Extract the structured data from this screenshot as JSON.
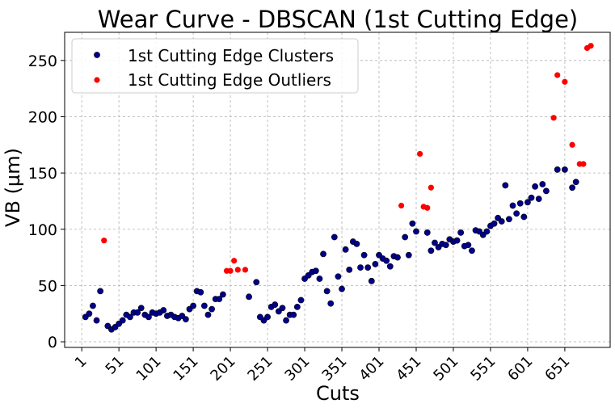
{
  "chart_data": {
    "type": "scatter",
    "title": "Wear Curve - DBSCAN (1st Cutting Edge)",
    "xlabel": "Cuts",
    "ylabel": "VB (µm)",
    "xlim": [
      -22,
      712
    ],
    "ylim": [
      -5,
      275
    ],
    "x_ticks": [
      1,
      51,
      101,
      151,
      201,
      251,
      301,
      351,
      401,
      451,
      501,
      551,
      601,
      651
    ],
    "x_tick_labels": [
      "1",
      "51",
      "101",
      "151",
      "201",
      "251",
      "301",
      "351",
      "401",
      "451",
      "501",
      "551",
      "601",
      "651"
    ],
    "y_ticks": [
      0,
      50,
      100,
      150,
      200,
      250
    ],
    "y_tick_labels": [
      "0",
      "50",
      "100",
      "150",
      "200",
      "250"
    ],
    "grid": true,
    "legend_position": "top-left",
    "series": [
      {
        "name": "1st Cutting Edge Clusters",
        "color": "#00008b",
        "edge_color": "#000000",
        "marker": "circle",
        "points": [
          [
            6,
            22
          ],
          [
            11,
            25
          ],
          [
            16,
            32
          ],
          [
            21,
            19
          ],
          [
            26,
            45
          ],
          [
            36,
            14
          ],
          [
            41,
            11
          ],
          [
            46,
            13
          ],
          [
            51,
            16
          ],
          [
            56,
            19
          ],
          [
            61,
            24
          ],
          [
            66,
            22
          ],
          [
            71,
            26
          ],
          [
            76,
            26
          ],
          [
            81,
            30
          ],
          [
            86,
            24
          ],
          [
            91,
            22
          ],
          [
            96,
            26
          ],
          [
            101,
            25
          ],
          [
            106,
            26
          ],
          [
            111,
            28
          ],
          [
            116,
            23
          ],
          [
            121,
            24
          ],
          [
            126,
            22
          ],
          [
            131,
            21
          ],
          [
            136,
            23
          ],
          [
            141,
            20
          ],
          [
            146,
            29
          ],
          [
            151,
            32
          ],
          [
            156,
            45
          ],
          [
            161,
            44
          ],
          [
            166,
            32
          ],
          [
            171,
            24
          ],
          [
            176,
            29
          ],
          [
            181,
            38
          ],
          [
            186,
            38
          ],
          [
            191,
            42
          ],
          [
            226,
            40
          ],
          [
            236,
            53
          ],
          [
            241,
            22
          ],
          [
            246,
            19
          ],
          [
            251,
            22
          ],
          [
            256,
            31
          ],
          [
            261,
            33
          ],
          [
            266,
            27
          ],
          [
            271,
            30
          ],
          [
            276,
            19
          ],
          [
            281,
            24
          ],
          [
            286,
            24
          ],
          [
            291,
            31
          ],
          [
            296,
            37
          ],
          [
            301,
            56
          ],
          [
            306,
            59
          ],
          [
            311,
            62
          ],
          [
            316,
            63
          ],
          [
            321,
            56
          ],
          [
            326,
            78
          ],
          [
            331,
            45
          ],
          [
            336,
            34
          ],
          [
            341,
            93
          ],
          [
            346,
            58
          ],
          [
            351,
            47
          ],
          [
            356,
            82
          ],
          [
            361,
            64
          ],
          [
            366,
            89
          ],
          [
            371,
            87
          ],
          [
            376,
            66
          ],
          [
            381,
            77
          ],
          [
            386,
            66
          ],
          [
            391,
            54
          ],
          [
            396,
            69
          ],
          [
            401,
            77
          ],
          [
            406,
            74
          ],
          [
            411,
            72
          ],
          [
            416,
            67
          ],
          [
            421,
            76
          ],
          [
            426,
            75
          ],
          [
            436,
            93
          ],
          [
            441,
            77
          ],
          [
            446,
            105
          ],
          [
            451,
            98
          ],
          [
            466,
            97
          ],
          [
            471,
            81
          ],
          [
            476,
            88
          ],
          [
            481,
            84
          ],
          [
            486,
            87
          ],
          [
            491,
            86
          ],
          [
            496,
            91
          ],
          [
            501,
            89
          ],
          [
            506,
            90
          ],
          [
            511,
            97
          ],
          [
            516,
            85
          ],
          [
            521,
            86
          ],
          [
            526,
            81
          ],
          [
            531,
            99
          ],
          [
            536,
            98
          ],
          [
            541,
            95
          ],
          [
            546,
            98
          ],
          [
            551,
            103
          ],
          [
            556,
            105
          ],
          [
            561,
            110
          ],
          [
            566,
            107
          ],
          [
            571,
            139
          ],
          [
            576,
            109
          ],
          [
            581,
            121
          ],
          [
            586,
            114
          ],
          [
            591,
            123
          ],
          [
            596,
            111
          ],
          [
            601,
            124
          ],
          [
            606,
            128
          ],
          [
            611,
            138
          ],
          [
            616,
            127
          ],
          [
            621,
            140
          ],
          [
            626,
            134
          ],
          [
            641,
            153
          ],
          [
            651,
            153
          ],
          [
            661,
            137
          ],
          [
            666,
            142
          ]
        ]
      },
      {
        "name": "1st Cutting Edge Outliers",
        "color": "#ff0000",
        "marker": "circle",
        "points": [
          [
            31,
            90
          ],
          [
            196,
            63
          ],
          [
            201,
            63
          ],
          [
            206,
            72
          ],
          [
            211,
            64
          ],
          [
            221,
            64
          ],
          [
            431,
            121
          ],
          [
            456,
            167
          ],
          [
            461,
            120
          ],
          [
            466,
            119
          ],
          [
            471,
            137
          ],
          [
            636,
            199
          ],
          [
            641,
            237
          ],
          [
            651,
            231
          ],
          [
            661,
            175
          ],
          [
            671,
            158
          ],
          [
            676,
            158
          ],
          [
            681,
            261
          ],
          [
            686,
            263
          ]
        ]
      }
    ]
  }
}
